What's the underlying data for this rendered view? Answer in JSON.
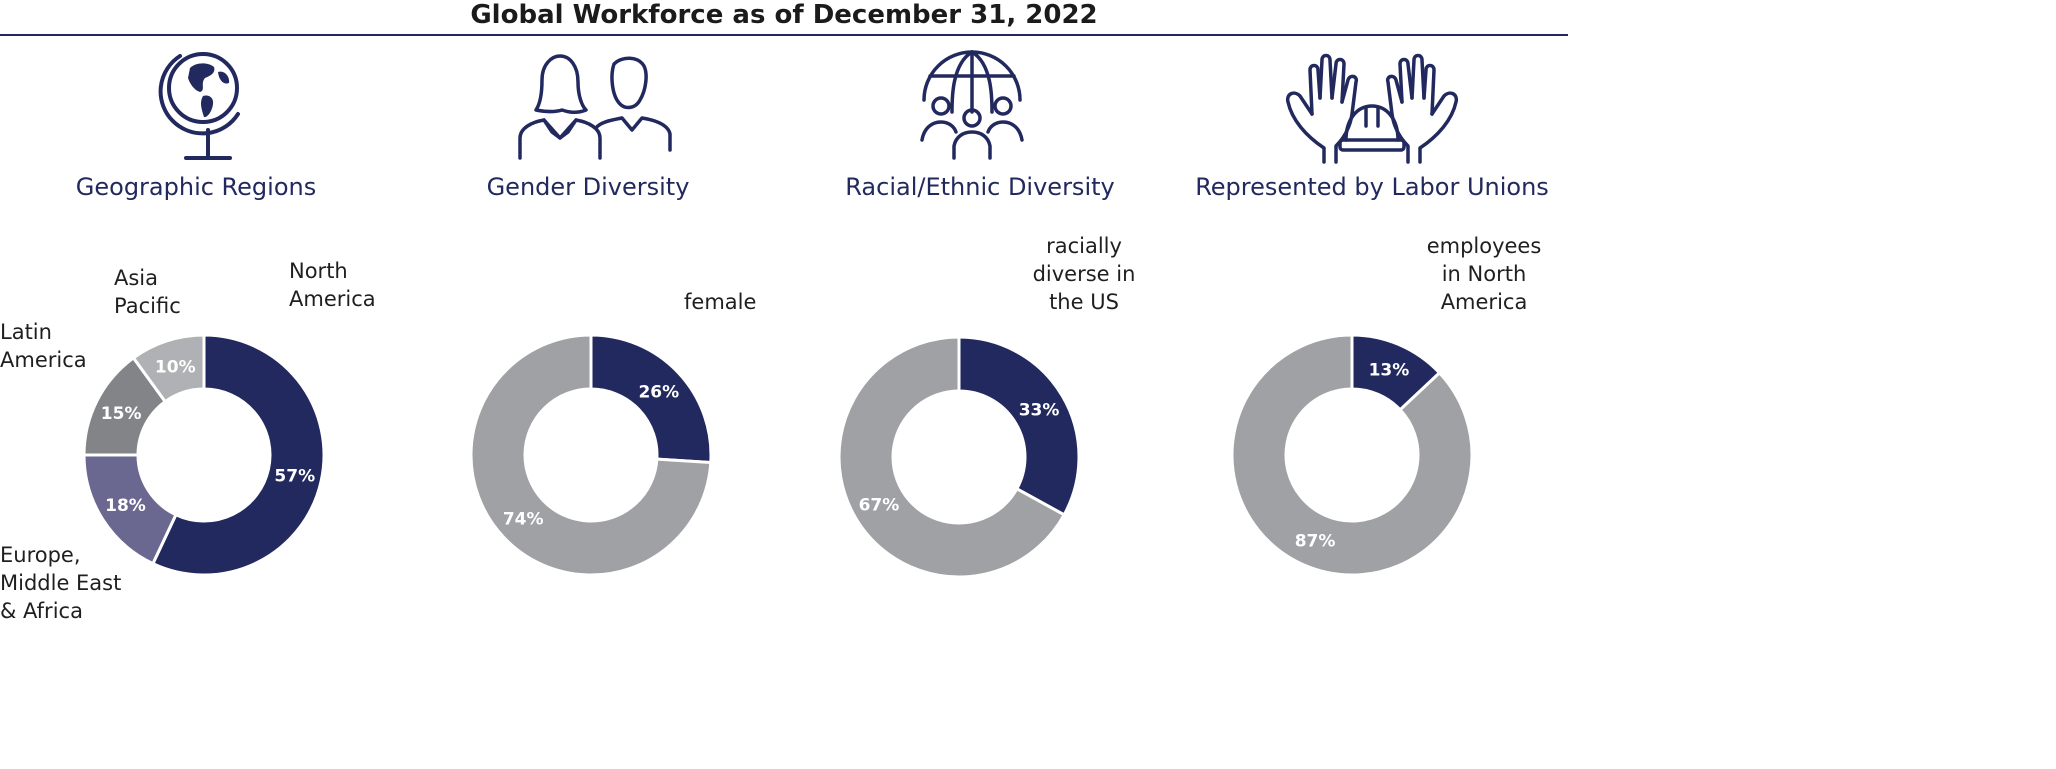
{
  "title": "Global Workforce as of December 31, 2022",
  "colors": {
    "navy": "#22295e",
    "gray": "#a0a1a5",
    "darkgray": "#838488",
    "purple": "#6a6890",
    "lightgray": "#b0b1b4"
  },
  "panels": [
    {
      "heading": "Geographic Regions",
      "icon": "globe-icon"
    },
    {
      "heading": "Gender Diversity",
      "icon": "people-icon"
    },
    {
      "heading": "Racial/Ethnic Diversity",
      "icon": "global-community-icon"
    },
    {
      "heading": "Represented by Labor Unions",
      "icon": "hands-hardhat-icon"
    }
  ],
  "chart_data": [
    {
      "type": "pie",
      "donut": true,
      "slices": [
        {
          "value": 57,
          "pct": "57%",
          "label": [
            "North",
            "America"
          ],
          "color": "#22295e"
        },
        {
          "value": 18,
          "pct": "18%",
          "label": [
            "Europe,",
            "Middle East",
            "& Africa"
          ],
          "color": "#6a6890"
        },
        {
          "value": 15,
          "pct": "15%",
          "label": [
            "Latin",
            "America"
          ],
          "color": "#838488"
        },
        {
          "value": 10,
          "pct": "10%",
          "label": [
            "Asia",
            "Pacific"
          ],
          "color": "#b0b1b4"
        }
      ]
    },
    {
      "type": "pie",
      "donut": true,
      "slices": [
        {
          "value": 26,
          "pct": "26%",
          "label": [
            "female"
          ],
          "color": "#22295e"
        },
        {
          "value": 74,
          "pct": "74%",
          "label": [],
          "color": "#a0a1a5"
        }
      ]
    },
    {
      "type": "pie",
      "donut": true,
      "slices": [
        {
          "value": 33,
          "pct": "33%",
          "label": [
            "racially",
            "diverse in",
            "the US"
          ],
          "color": "#22295e"
        },
        {
          "value": 67,
          "pct": "67%",
          "label": [],
          "color": "#a0a1a5"
        }
      ]
    },
    {
      "type": "pie",
      "donut": true,
      "slices": [
        {
          "value": 13,
          "pct": "13%",
          "label": [
            "employees",
            "in North",
            "America"
          ],
          "color": "#22295e"
        },
        {
          "value": 87,
          "pct": "87%",
          "label": [],
          "color": "#a0a1a5"
        }
      ]
    }
  ]
}
